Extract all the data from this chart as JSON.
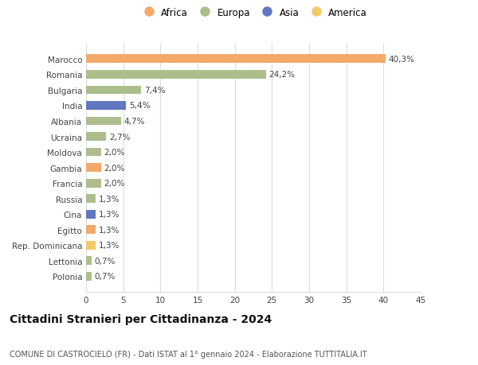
{
  "countries": [
    "Marocco",
    "Romania",
    "Bulgaria",
    "India",
    "Albania",
    "Ucraina",
    "Moldova",
    "Gambia",
    "Francia",
    "Russia",
    "Cina",
    "Egitto",
    "Rep. Dominicana",
    "Lettonia",
    "Polonia"
  ],
  "values": [
    40.3,
    24.2,
    7.4,
    5.4,
    4.7,
    2.7,
    2.0,
    2.0,
    2.0,
    1.3,
    1.3,
    1.3,
    1.3,
    0.7,
    0.7
  ],
  "labels": [
    "40,3%",
    "24,2%",
    "7,4%",
    "5,4%",
    "4,7%",
    "2,7%",
    "2,0%",
    "2,0%",
    "2,0%",
    "1,3%",
    "1,3%",
    "1,3%",
    "1,3%",
    "0,7%",
    "0,7%"
  ],
  "continents": [
    "Africa",
    "Europa",
    "Europa",
    "Asia",
    "Europa",
    "Europa",
    "Europa",
    "Africa",
    "Europa",
    "Europa",
    "Asia",
    "Africa",
    "America",
    "Europa",
    "Europa"
  ],
  "colors": {
    "Africa": "#F2A96A",
    "Europa": "#ABBE8C",
    "Asia": "#6177C0",
    "America": "#F0CB6A"
  },
  "title": "Cittadini Stranieri per Cittadinanza - 2024",
  "subtitle": "COMUNE DI CASTROCIELO (FR) - Dati ISTAT al 1° gennaio 2024 - Elaborazione TUTTITALIA.IT",
  "xlim": [
    0,
    45
  ],
  "xticks": [
    0,
    5,
    10,
    15,
    20,
    25,
    30,
    35,
    40,
    45
  ],
  "background_color": "#ffffff",
  "grid_color": "#dddddd",
  "bar_height": 0.55,
  "label_fontsize": 7.5,
  "tick_fontsize": 7.5,
  "title_fontsize": 10,
  "subtitle_fontsize": 7
}
